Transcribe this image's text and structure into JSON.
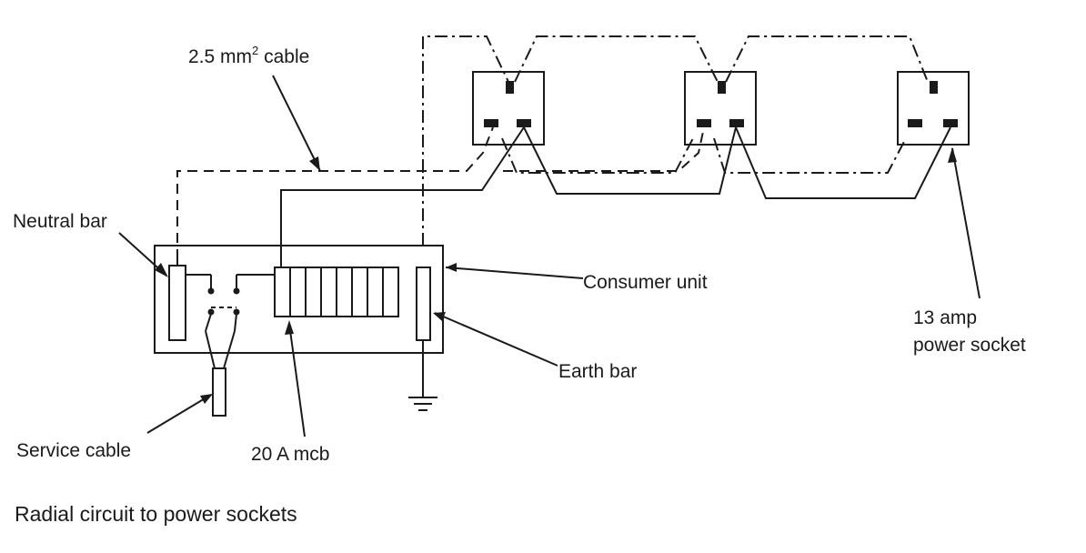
{
  "labels": {
    "cable_prefix": "2.5 mm",
    "cable_superscript": "2",
    "cable_suffix": " cable",
    "neutral_bar": "Neutral bar",
    "consumer_unit": "Consumer unit",
    "earth_bar": "Earth bar",
    "service_cable": "Service cable",
    "mcb": "20 A mcb",
    "socket_line1": "13 amp",
    "socket_line2": "power socket"
  },
  "caption": "Radial circuit to power sockets"
}
